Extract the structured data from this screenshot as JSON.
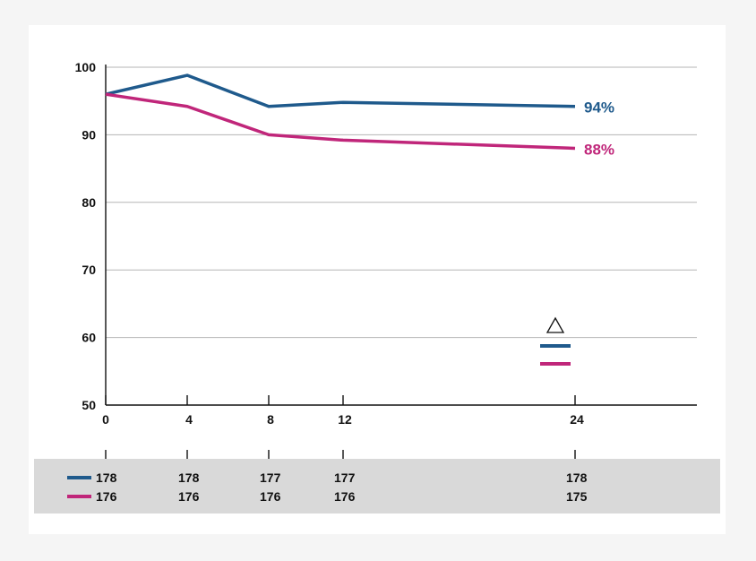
{
  "chart_data": {
    "type": "line",
    "x": [
      0,
      4,
      8,
      12,
      24
    ],
    "x_ticks": [
      "0",
      "4",
      "8",
      "12",
      "24"
    ],
    "ylim": [
      50,
      100
    ],
    "y_ticks": [
      "50",
      "60",
      "70",
      "80",
      "90",
      "100"
    ],
    "grid": true,
    "series": [
      {
        "color": "#1f5a8c",
        "values": [
          96,
          98.8,
          94.2,
          94.8,
          94.2
        ],
        "end_label": "94%",
        "n_at_risk": [
          "178",
          "178",
          "177",
          "177",
          "178"
        ]
      },
      {
        "color": "#c0267a",
        "values": [
          96,
          94.2,
          90,
          89.2,
          88
        ],
        "end_label": "88%",
        "n_at_risk": [
          "176",
          "176",
          "176",
          "176",
          "175"
        ]
      }
    ],
    "legend_marker": "triangle-outline-icon",
    "legend_placement": "bottom-right"
  }
}
